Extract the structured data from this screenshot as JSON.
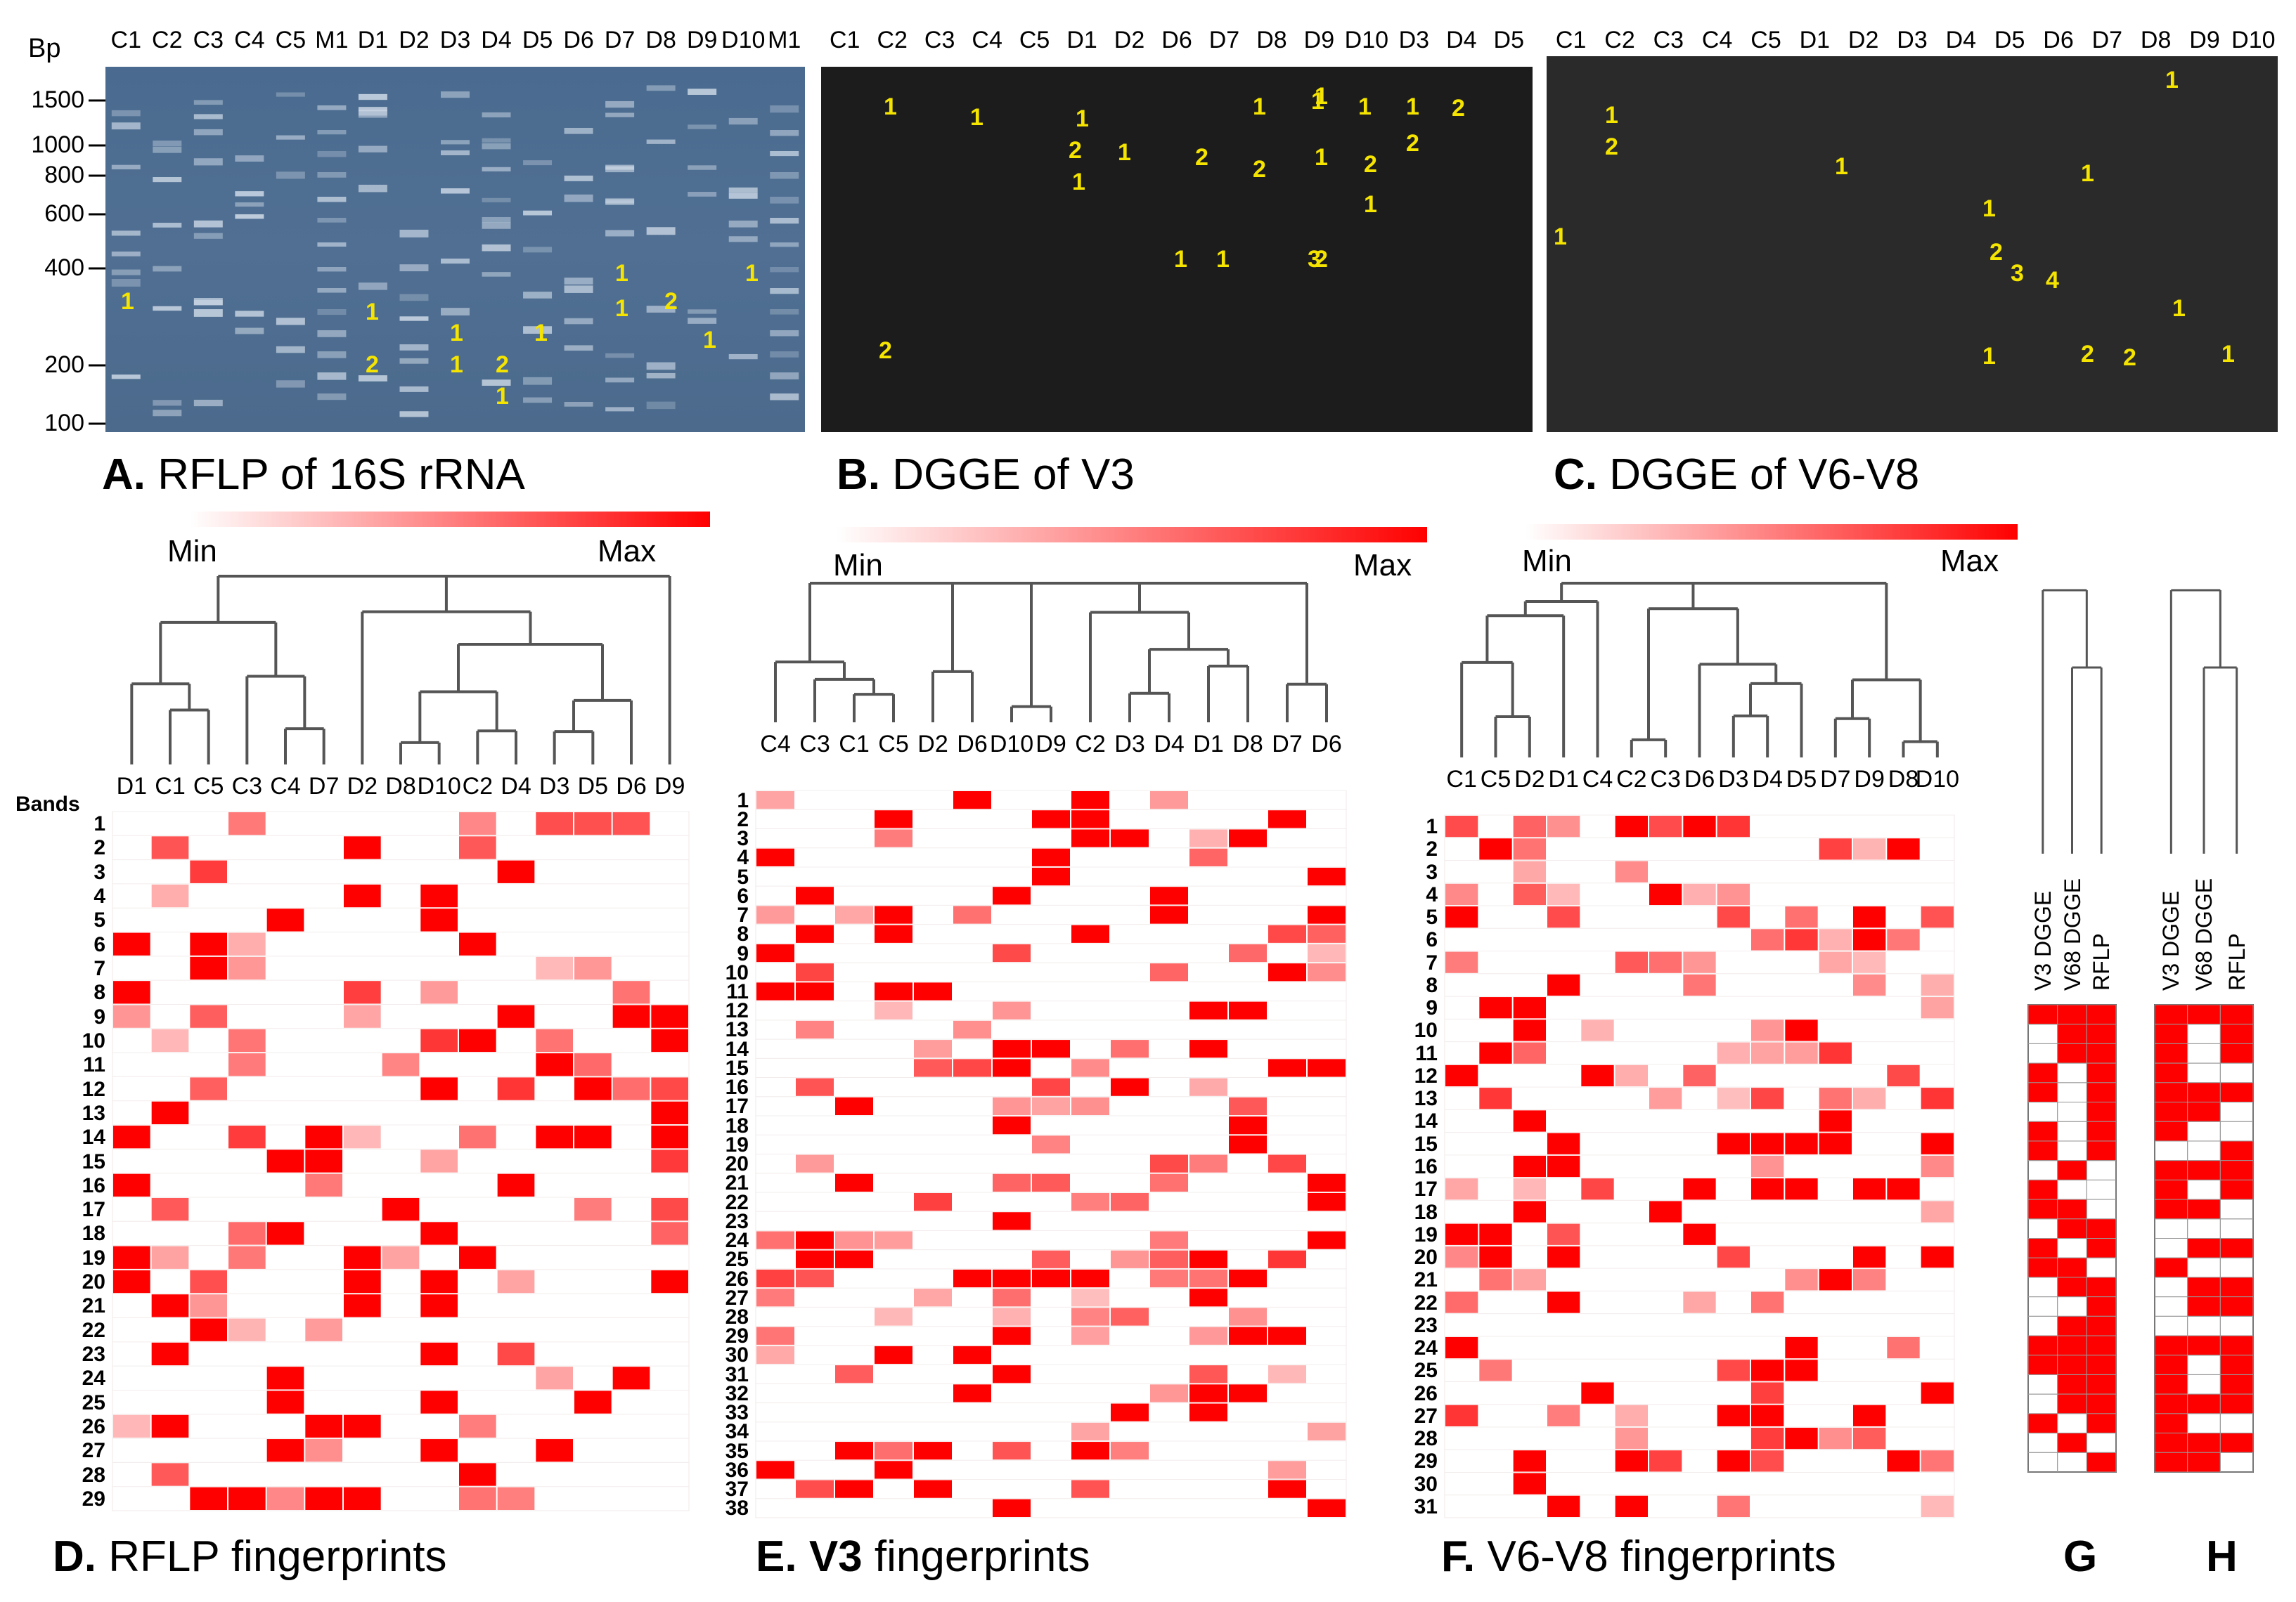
{
  "panels": {
    "A": {
      "letter": "A.",
      "caption": "RFLP of 16S rRNA",
      "lanes": [
        "C1",
        "C2",
        "C3",
        "C4",
        "C5",
        "M1",
        "D1",
        "D2",
        "D3",
        "D4",
        "D5",
        "D6",
        "D7",
        "D8",
        "D9",
        "D10",
        "M1"
      ],
      "bp_title": "Bp",
      "bp_ticks": [
        "1500",
        "1000",
        "800",
        "600",
        "400",
        "200",
        "100"
      ]
    },
    "B": {
      "letter": "B.",
      "caption": "DGGE of V3",
      "lanes": [
        "C1",
        "C2",
        "C3",
        "C4",
        "C5",
        "D1",
        "D2",
        "D6",
        "D7",
        "D8",
        "D9",
        "D10",
        "D3",
        "D4",
        "D5"
      ]
    },
    "C": {
      "letter": "C.",
      "caption": "DGGE of V6-V8",
      "lanes": [
        "C1",
        "C2",
        "C3",
        "C4",
        "C5",
        "D1",
        "D2",
        "D3",
        "D4",
        "D5",
        "D6",
        "D7",
        "D8",
        "D9",
        "D10"
      ]
    },
    "D": {
      "letter": "D.",
      "caption": "RFLP fingerprints",
      "bands_title": "Bands",
      "columns": [
        "D1",
        "C1",
        "C5",
        "C3",
        "C4",
        "D7",
        "D2",
        "D8",
        "D10",
        "C2",
        "D4",
        "D3",
        "D5",
        "D6",
        "D9"
      ],
      "rows": 29
    },
    "E": {
      "letter": "E.",
      "caption_bold": "V3",
      "caption": "fingerprints",
      "columns": [
        "C4",
        "C3",
        "C1",
        "C5",
        "D2",
        "D6",
        "D10",
        "D9",
        "C2",
        "D3",
        "D4",
        "D1",
        "D8",
        "D7",
        "D6"
      ],
      "rows": 38
    },
    "F": {
      "letter": "F.",
      "caption": "V6-V8 fingerprints",
      "columns": [
        "C1",
        "C5",
        "D2",
        "D1",
        "C4",
        "C2",
        "C3",
        "D6",
        "D3",
        "D4",
        "D5",
        "D7",
        "D9",
        "D8",
        "D10"
      ],
      "rows": 31
    },
    "G": {
      "letter": "G",
      "labels": [
        "V3 DGGE",
        "V68 DGGE",
        "RFLP"
      ]
    },
    "H": {
      "letter": "H",
      "labels": [
        "V3 DGGE",
        "V68 DGGE",
        "RFLP"
      ]
    }
  },
  "scale": {
    "min": "Min",
    "max": "Max"
  },
  "markers": {
    "A": [
      "1",
      "1",
      "2",
      "1",
      "1",
      "2",
      "1",
      "1",
      "1",
      "1",
      "2",
      "1",
      "1"
    ],
    "B": [
      "1",
      "1",
      "1",
      "2",
      "1",
      "1",
      "1",
      "1",
      "1",
      "1",
      "1",
      "2",
      "2",
      "2",
      "1",
      "2",
      "2",
      "1",
      "1",
      "2",
      "1",
      "3",
      "2"
    ],
    "C": [
      "1",
      "2",
      "1",
      "1",
      "1",
      "1",
      "2",
      "3",
      "4",
      "1",
      "1",
      "2",
      "2",
      "1",
      "1"
    ]
  },
  "colors": {
    "gel_A": "#4d6e92",
    "gel_dark": "#1a1a1a",
    "heat": "#ff0000"
  }
}
